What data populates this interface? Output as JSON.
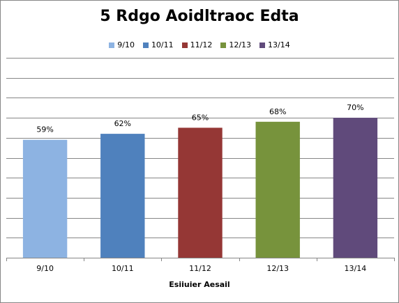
{
  "chart_data": {
    "type": "bar",
    "title": "5 Rdgo Aoidltraoc Edta",
    "xlabel": "Esiiuier Aesail",
    "ylabel": "",
    "categories": [
      "9/10",
      "10/11",
      "11/12",
      "12/13",
      "13/14"
    ],
    "values": [
      59,
      62,
      65,
      68,
      70
    ],
    "data_labels": [
      "59%",
      "62%",
      "65%",
      "68%",
      "70%"
    ],
    "colors": [
      "#8DB3E2",
      "#4F81BD",
      "#953735",
      "#77933C",
      "#604A7B"
    ],
    "legend": [
      "9/10",
      "10/11",
      "11/12",
      "12/13",
      "13/14"
    ],
    "legend_position": "top",
    "ylim": [
      0,
      100
    ],
    "grid": true
  }
}
